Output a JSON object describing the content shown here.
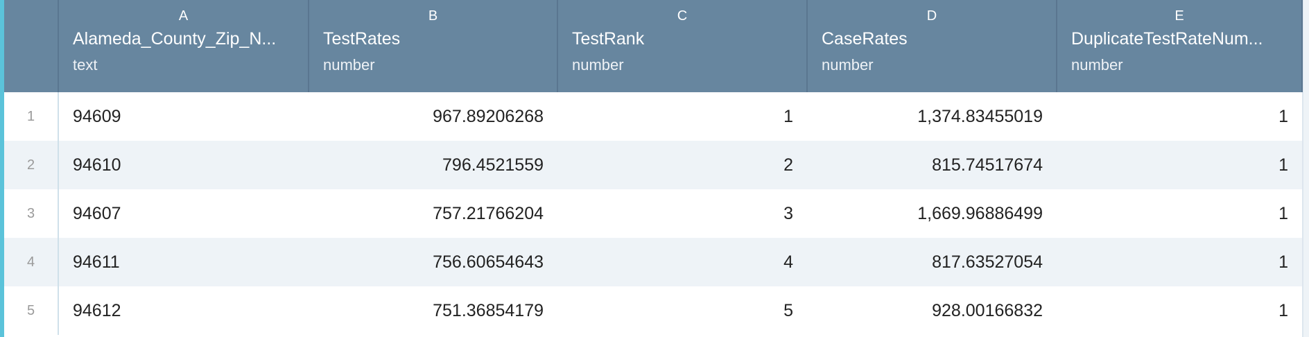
{
  "colors": {
    "header_bg": "#67869f",
    "stripe": "#eef3f7",
    "accent_border": "#5bc3da"
  },
  "columns": [
    {
      "letter": "A",
      "name": "Alameda_County_Zip_N...",
      "type": "text",
      "align": "left"
    },
    {
      "letter": "B",
      "name": "TestRates",
      "type": "number",
      "align": "right"
    },
    {
      "letter": "C",
      "name": "TestRank",
      "type": "number",
      "align": "right"
    },
    {
      "letter": "D",
      "name": "CaseRates",
      "type": "number",
      "align": "right"
    },
    {
      "letter": "E",
      "name": "DuplicateTestRateNum...",
      "type": "number",
      "align": "right"
    }
  ],
  "rows": [
    {
      "n": "1",
      "cells": [
        "94609",
        "967.89206268",
        "1",
        "1,374.83455019",
        "1"
      ]
    },
    {
      "n": "2",
      "cells": [
        "94610",
        "796.4521559",
        "2",
        "815.74517674",
        "1"
      ]
    },
    {
      "n": "3",
      "cells": [
        "94607",
        "757.21766204",
        "3",
        "1,669.96886499",
        "1"
      ]
    },
    {
      "n": "4",
      "cells": [
        "94611",
        "756.60654643",
        "4",
        "817.63527054",
        "1"
      ]
    },
    {
      "n": "5",
      "cells": [
        "94612",
        "751.36854179",
        "5",
        "928.00166832",
        "1"
      ]
    }
  ]
}
